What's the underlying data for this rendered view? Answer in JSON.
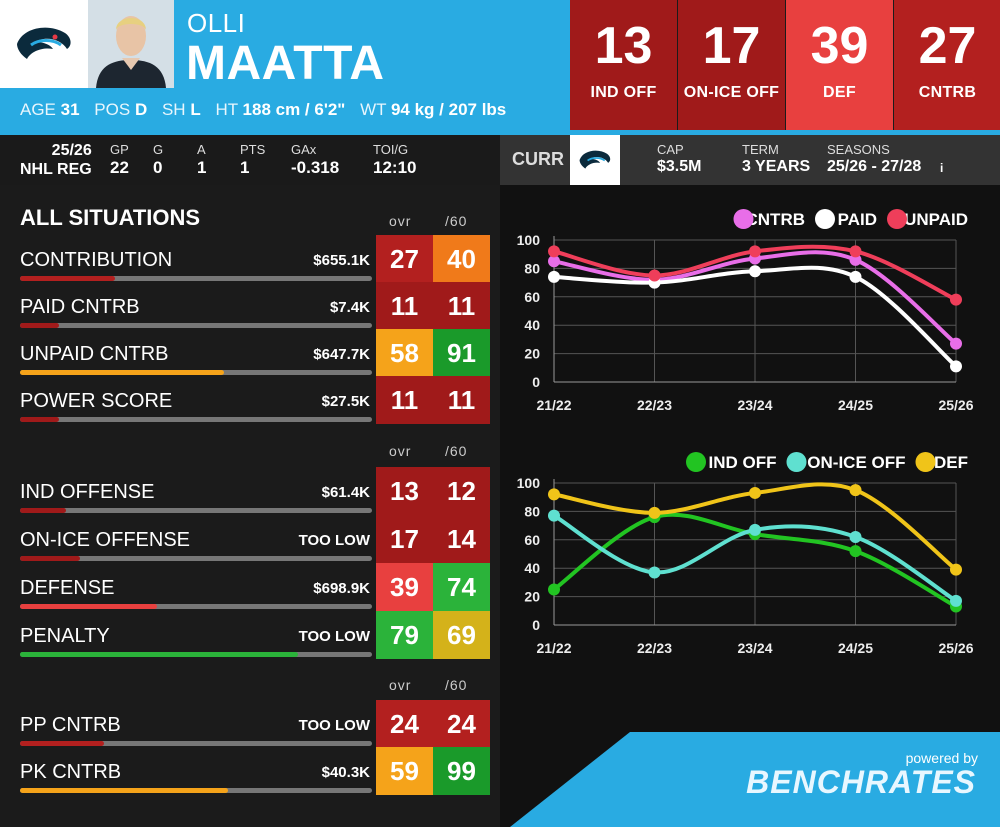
{
  "player": {
    "first_name": "OLLI",
    "last_name": "MAATTA",
    "age_label": "AGE",
    "age": "31",
    "pos_label": "POS",
    "pos": "D",
    "sh_label": "SH",
    "sh": "L",
    "ht_label": "HT",
    "ht": "188 cm / 6'2\"",
    "wt_label": "WT",
    "wt": "94 kg / 207 lbs"
  },
  "tiles": [
    {
      "value": "13",
      "label": "IND OFF",
      "color": "#a01a1a"
    },
    {
      "value": "17",
      "label": "ON-ICE OFF",
      "color": "#a01a1a"
    },
    {
      "value": "39",
      "label": "DEF",
      "color": "#e8403f"
    },
    {
      "value": "27",
      "label": "CNTRB",
      "color": "#b3201f"
    }
  ],
  "statbar": {
    "season": "25/26",
    "league": "NHL REG",
    "gp_label": "GP",
    "gp": "22",
    "g_label": "G",
    "g": "0",
    "a_label": "A",
    "a": "1",
    "pts_label": "PTS",
    "pts": "1",
    "gax_label": "GAx",
    "gax": "-0.318",
    "toi_label": "TOI/G",
    "toi": "12:10"
  },
  "contract": {
    "curr": "CURR",
    "cap_label": "CAP",
    "cap": "$3.5M",
    "term_label": "TERM",
    "term": "3 YEARS",
    "seasons_label": "SEASONS",
    "seasons": "25/26 - 27/28",
    "info": "i"
  },
  "section_title": "ALL SITUATIONS",
  "col_ovr": "ovr",
  "col_60": "/60",
  "rows_all": [
    {
      "name": "CONTRIBUTION",
      "dollar": "$655.1K",
      "bar": 0.27,
      "bar_color": "#b3201f",
      "ovr": "27",
      "ovr_color": "#b3201f",
      "p60": "40",
      "p60_color": "#f07a1a"
    },
    {
      "name": "PAID CNTRB",
      "dollar": "$7.4K",
      "bar": 0.11,
      "bar_color": "#a01a1a",
      "ovr": "11",
      "ovr_color": "#a01a1a",
      "p60": "11",
      "p60_color": "#a01a1a"
    },
    {
      "name": "UNPAID CNTRB",
      "dollar": "$647.7K",
      "bar": 0.58,
      "bar_color": "#f5a31a",
      "ovr": "58",
      "ovr_color": "#f5a31a",
      "p60": "91",
      "p60_color": "#1a9a2a"
    },
    {
      "name": "POWER SCORE",
      "dollar": "$27.5K",
      "bar": 0.11,
      "bar_color": "#a01a1a",
      "ovr": "11",
      "ovr_color": "#a01a1a",
      "p60": "11",
      "p60_color": "#a01a1a"
    }
  ],
  "rows_comp": [
    {
      "name": "IND OFFENSE",
      "dollar": "$61.4K",
      "bar": 0.13,
      "bar_color": "#a01a1a",
      "ovr": "13",
      "ovr_color": "#a01a1a",
      "p60": "12",
      "p60_color": "#a01a1a"
    },
    {
      "name": "ON-ICE OFFENSE",
      "dollar": "TOO LOW",
      "bar": 0.17,
      "bar_color": "#a01a1a",
      "ovr": "17",
      "ovr_color": "#a01a1a",
      "p60": "14",
      "p60_color": "#a01a1a"
    },
    {
      "name": "DEFENSE",
      "dollar": "$698.9K",
      "bar": 0.39,
      "bar_color": "#e8403f",
      "ovr": "39",
      "ovr_color": "#e8403f",
      "p60": "74",
      "p60_color": "#2bb33a"
    },
    {
      "name": "PENALTY",
      "dollar": "TOO LOW",
      "bar": 0.79,
      "bar_color": "#2bb33a",
      "ovr": "79",
      "ovr_color": "#2bb33a",
      "p60": "69",
      "p60_color": "#d4b21a"
    }
  ],
  "rows_st": [
    {
      "name": "PP CNTRB",
      "dollar": "TOO LOW",
      "bar": 0.24,
      "bar_color": "#b3201f",
      "ovr": "24",
      "ovr_color": "#b3201f",
      "p60": "24",
      "p60_color": "#b3201f"
    },
    {
      "name": "PK CNTRB",
      "dollar": "$40.3K",
      "bar": 0.59,
      "bar_color": "#f5a31a",
      "ovr": "59",
      "ovr_color": "#f5a31a",
      "p60": "99",
      "p60_color": "#1a9a2a"
    }
  ],
  "chart_data": [
    {
      "type": "line",
      "x": [
        "21/22",
        "22/23",
        "23/24",
        "24/25",
        "25/26"
      ],
      "ylim": [
        0,
        100
      ],
      "yticks": [
        0,
        20,
        40,
        60,
        80,
        100
      ],
      "legend_position": "top-right",
      "series": [
        {
          "name": "CNTRB",
          "color": "#e86ee8",
          "values": [
            85,
            72,
            87,
            86,
            27
          ]
        },
        {
          "name": "PAID",
          "color": "#ffffff",
          "values": [
            74,
            70,
            78,
            74,
            11
          ]
        },
        {
          "name": "UNPAID",
          "color": "#ef3e5a",
          "values": [
            92,
            75,
            92,
            92,
            58
          ]
        }
      ]
    },
    {
      "type": "line",
      "x": [
        "21/22",
        "22/23",
        "23/24",
        "24/25",
        "25/26"
      ],
      "ylim": [
        0,
        100
      ],
      "yticks": [
        0,
        20,
        40,
        60,
        80,
        100
      ],
      "legend_position": "top-right",
      "series": [
        {
          "name": "IND OFF",
          "color": "#22c422",
          "values": [
            25,
            76,
            64,
            52,
            13
          ]
        },
        {
          "name": "ON-ICE OFF",
          "color": "#5fe0d0",
          "values": [
            77,
            37,
            67,
            62,
            17
          ]
        },
        {
          "name": "DEF",
          "color": "#f0c419",
          "values": [
            92,
            79,
            93,
            95,
            39
          ]
        }
      ]
    }
  ],
  "footer": {
    "powered": "powered by",
    "brand": "BENCHRATES"
  }
}
